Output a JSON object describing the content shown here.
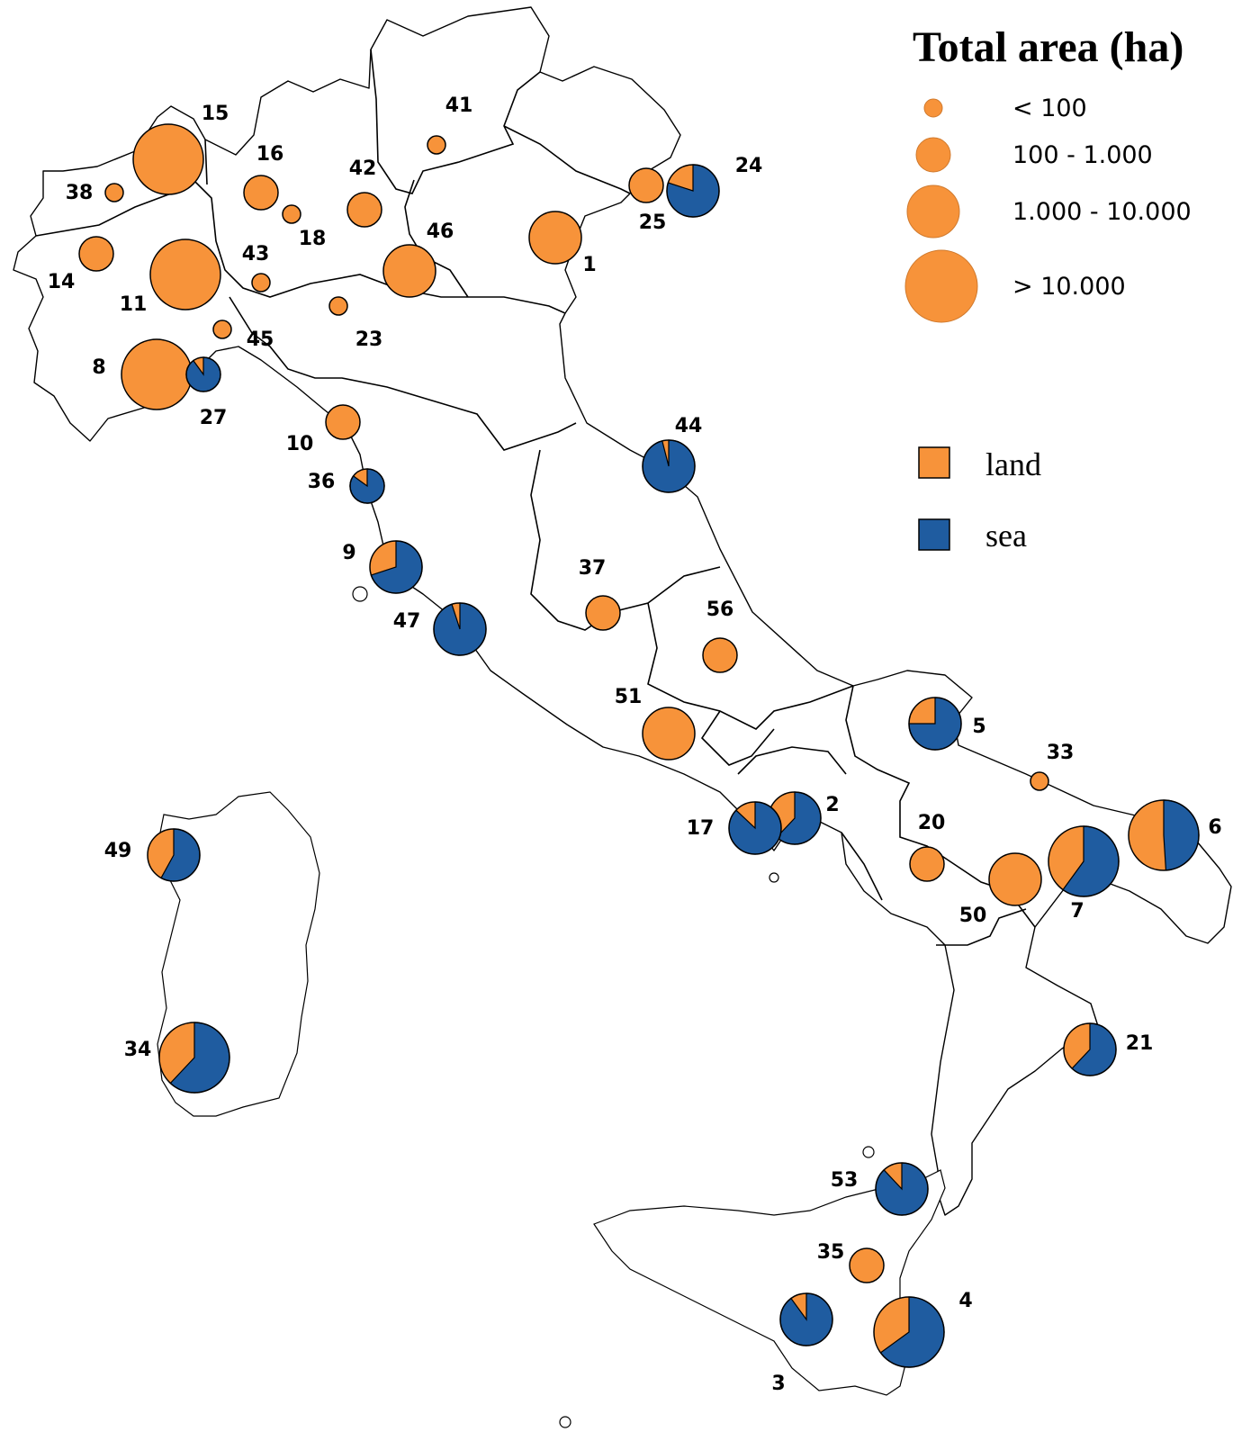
{
  "legend": {
    "title": "Total area (ha)",
    "size_classes": [
      {
        "label": "< 100"
      },
      {
        "label": "100 - 1.000"
      },
      {
        "label": "1.000 - 10.000"
      },
      {
        "label": "> 10.000"
      }
    ],
    "categories": [
      {
        "label": "land",
        "color": "#F7933A"
      },
      {
        "label": "sea",
        "color": "#1F5CA0"
      }
    ]
  },
  "colors": {
    "land": "#F7933A",
    "sea": "#1F5CA0",
    "outline": "#000000"
  },
  "sites": [
    {
      "id": "1",
      "size_class": 3,
      "sea_share": 0
    },
    {
      "id": "2",
      "size_class": 3,
      "sea_share": 0.62
    },
    {
      "id": "3",
      "size_class": 3,
      "sea_share": 0.9
    },
    {
      "id": "4",
      "size_class": 4,
      "sea_share": 0.65
    },
    {
      "id": "5",
      "size_class": 3,
      "sea_share": 0.75
    },
    {
      "id": "6",
      "size_class": 4,
      "sea_share": 0.49
    },
    {
      "id": "7",
      "size_class": 4,
      "sea_share": 0.6
    },
    {
      "id": "8",
      "size_class": 4,
      "sea_share": 0
    },
    {
      "id": "9",
      "size_class": 3,
      "sea_share": 0.7
    },
    {
      "id": "10",
      "size_class": 2,
      "sea_share": 0
    },
    {
      "id": "11",
      "size_class": 4,
      "sea_share": 0
    },
    {
      "id": "14",
      "size_class": 2,
      "sea_share": 0
    },
    {
      "id": "15",
      "size_class": 4,
      "sea_share": 0
    },
    {
      "id": "16",
      "size_class": 2,
      "sea_share": 0
    },
    {
      "id": "17",
      "size_class": 3,
      "sea_share": 0.87
    },
    {
      "id": "18",
      "size_class": 1,
      "sea_share": 0
    },
    {
      "id": "20",
      "size_class": 2,
      "sea_share": 0
    },
    {
      "id": "21",
      "size_class": 3,
      "sea_share": 0.62
    },
    {
      "id": "23",
      "size_class": 1,
      "sea_share": 0
    },
    {
      "id": "24",
      "size_class": 3,
      "sea_share": 0.8
    },
    {
      "id": "25",
      "size_class": 2,
      "sea_share": 0
    },
    {
      "id": "27",
      "size_class": 2,
      "sea_share": 0.9
    },
    {
      "id": "33",
      "size_class": 1,
      "sea_share": 0
    },
    {
      "id": "34",
      "size_class": 4,
      "sea_share": 0.62
    },
    {
      "id": "35",
      "size_class": 2,
      "sea_share": 0
    },
    {
      "id": "36",
      "size_class": 2,
      "sea_share": 0.85
    },
    {
      "id": "37",
      "size_class": 2,
      "sea_share": 0
    },
    {
      "id": "38",
      "size_class": 1,
      "sea_share": 0
    },
    {
      "id": "41",
      "size_class": 1,
      "sea_share": 0
    },
    {
      "id": "42",
      "size_class": 2,
      "sea_share": 0
    },
    {
      "id": "43",
      "size_class": 1,
      "sea_share": 0
    },
    {
      "id": "44",
      "size_class": 3,
      "sea_share": 0.96
    },
    {
      "id": "45",
      "size_class": 1,
      "sea_share": 0
    },
    {
      "id": "46",
      "size_class": 3,
      "sea_share": 0
    },
    {
      "id": "47",
      "size_class": 3,
      "sea_share": 0.95
    },
    {
      "id": "49",
      "size_class": 3,
      "sea_share": 0.58
    },
    {
      "id": "50",
      "size_class": 3,
      "sea_share": 0
    },
    {
      "id": "51",
      "size_class": 3,
      "sea_share": 0
    },
    {
      "id": "53",
      "size_class": 3,
      "sea_share": 0.88
    },
    {
      "id": "56",
      "size_class": 2,
      "sea_share": 0
    }
  ]
}
